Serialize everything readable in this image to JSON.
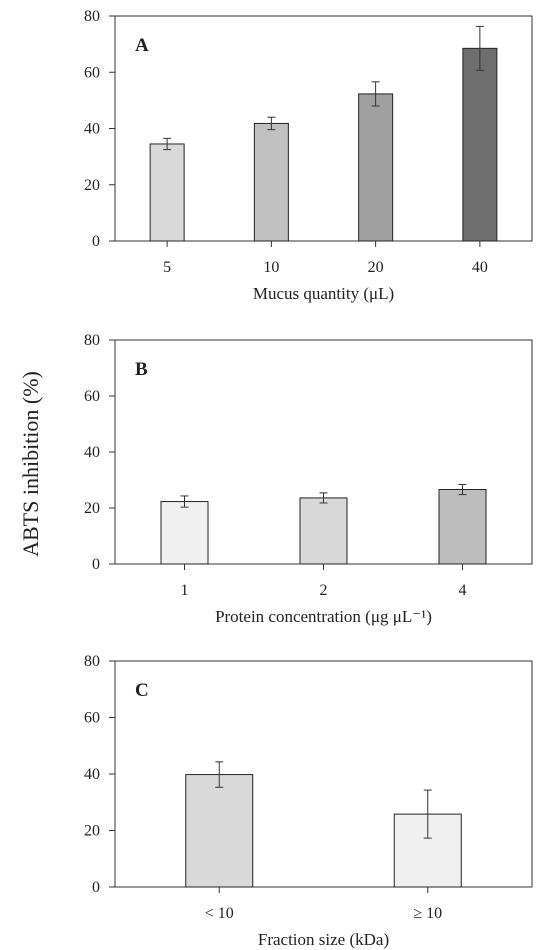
{
  "figure": {
    "ylabel": "ABTS inhibition (%)"
  },
  "chart_data": [
    {
      "type": "bar",
      "panel_label": "A",
      "xlabel": "Mucus quantity (μL)",
      "categories": [
        "5",
        "10",
        "20",
        "40"
      ],
      "values": [
        34.5,
        41.8,
        52.3,
        68.5
      ],
      "errors": [
        2.0,
        2.2,
        4.3,
        7.8
      ],
      "colors": [
        "#d9d9d9",
        "#c0c0c0",
        "#a0a0a0",
        "#6e6e6e"
      ],
      "ylim": [
        0,
        80
      ],
      "yticks": [
        "0",
        "20",
        "40",
        "60",
        "80"
      ]
    },
    {
      "type": "bar",
      "panel_label": "B",
      "xlabel": "Protein concentration (μg μL⁻¹)",
      "categories": [
        "1",
        "2",
        "4"
      ],
      "values": [
        22.3,
        23.6,
        26.6
      ],
      "errors": [
        2.0,
        1.8,
        1.8
      ],
      "colors": [
        "#f0f0f0",
        "#d8d8d8",
        "#bdbdbd"
      ],
      "ylim": [
        0,
        80
      ],
      "yticks": [
        "0",
        "20",
        "40",
        "60",
        "80"
      ]
    },
    {
      "type": "bar",
      "panel_label": "C",
      "xlabel": "Fraction size (kDa)",
      "categories": [
        "< 10",
        "≥ 10"
      ],
      "values": [
        39.8,
        25.8
      ],
      "errors": [
        4.5,
        8.5
      ],
      "colors": [
        "#d9d9d9",
        "#f0f0f0"
      ],
      "ylim": [
        0,
        80
      ],
      "yticks": [
        "0",
        "20",
        "40",
        "60",
        "80"
      ]
    }
  ]
}
